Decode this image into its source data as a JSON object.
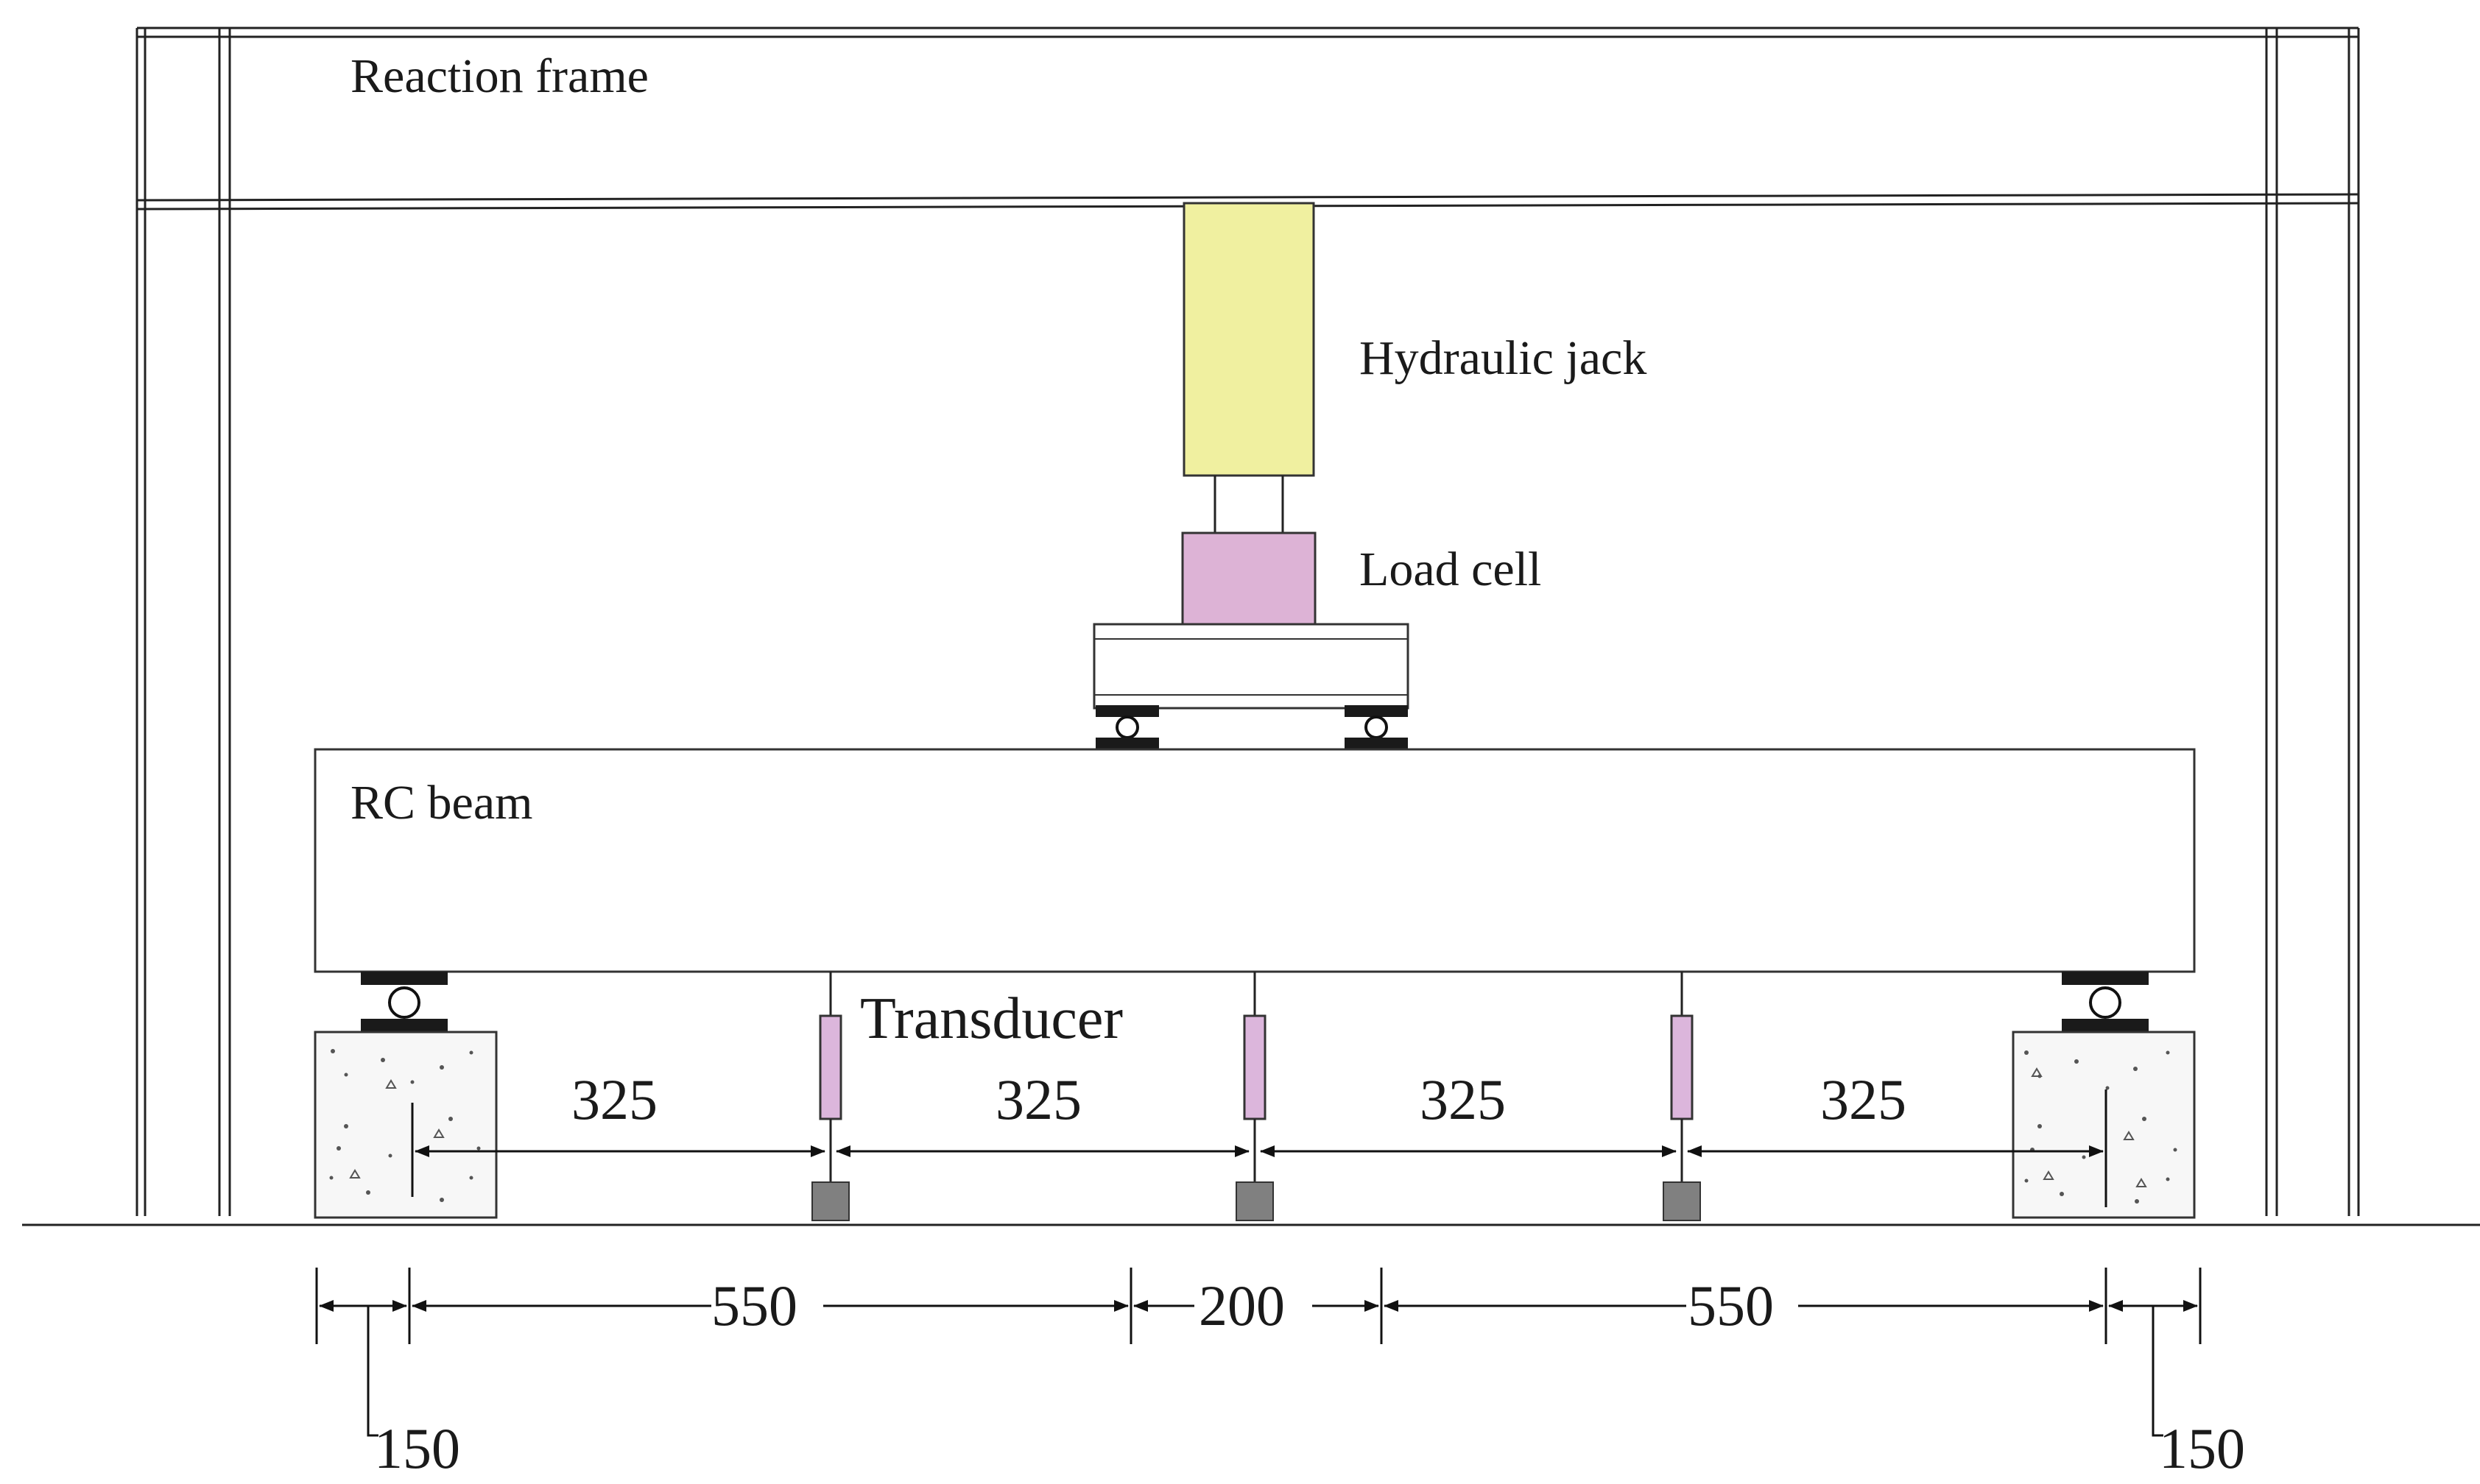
{
  "labels": {
    "reaction_frame": "Reaction frame",
    "hydraulic_jack": "Hydraulic jack",
    "load_cell": "Load cell",
    "rc_beam": "RC beam",
    "transducer": "Transducer"
  },
  "transducer_spacing": [
    "325",
    "325",
    "325",
    "325"
  ],
  "span_dimensions": {
    "left_overhang": "150",
    "shear_span_left": "550",
    "load_spacing": "200",
    "shear_span_right": "550",
    "right_overhang": "150"
  },
  "colors": {
    "hydraulic_jack": "#f0f0a0",
    "load_cell": "#ddb3d6",
    "transducer": "#dcb6dc",
    "transducer_base": "#808080",
    "support_pad": "#1a1a1a"
  }
}
